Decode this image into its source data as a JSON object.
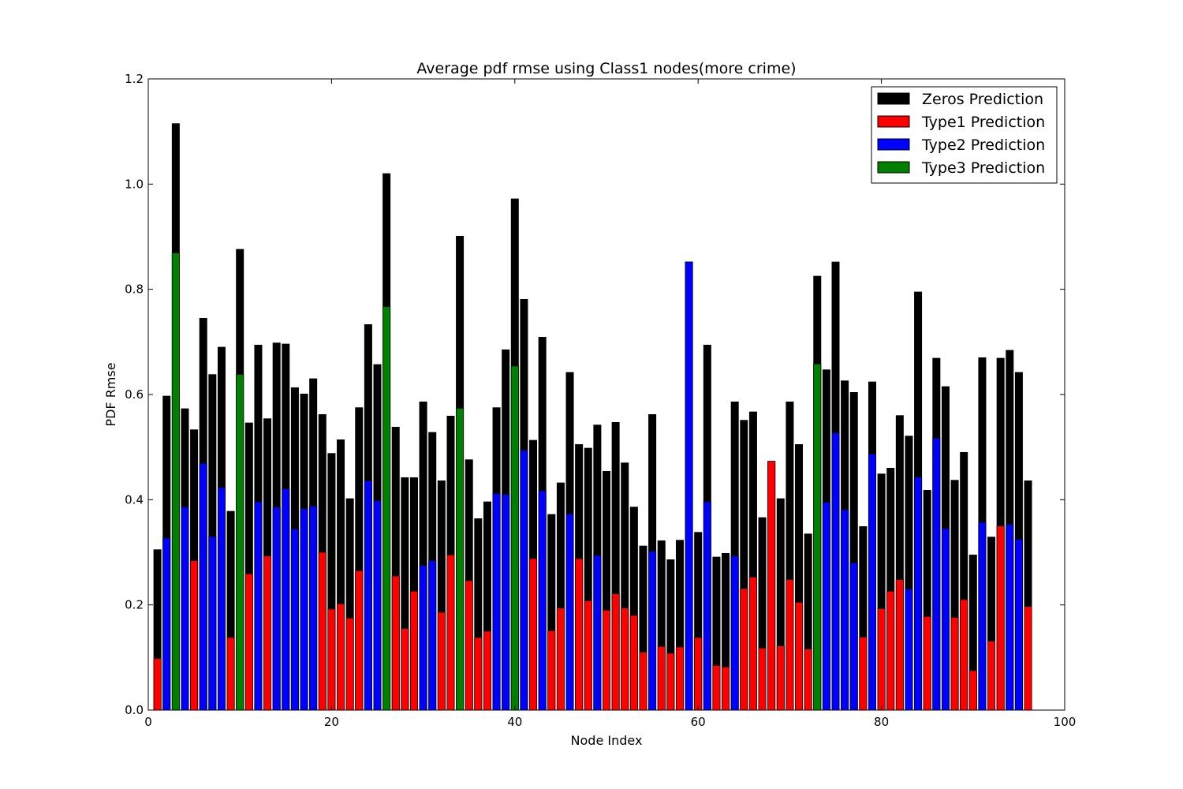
{
  "chart_data": {
    "type": "bar",
    "title": "Average pdf rmse using Class1 nodes(more crime)",
    "xlabel": "Node Index",
    "ylabel": "PDF Rmse",
    "xlim": [
      0,
      100
    ],
    "ylim": [
      0,
      1.2
    ],
    "xticks": [
      "0",
      "20",
      "40",
      "60",
      "80",
      "100"
    ],
    "xtick_values": [
      0,
      20,
      40,
      60,
      80,
      100
    ],
    "yticks": [
      "0.0",
      "0.2",
      "0.4",
      "0.6",
      "0.8",
      "1.0",
      "1.2"
    ],
    "ytick_values": [
      0,
      0.2,
      0.4,
      0.6,
      0.8,
      1.0,
      1.2
    ],
    "legend_position": "top-right",
    "series": [
      {
        "name": "Zeros Prediction",
        "color": "#000000"
      },
      {
        "name": "Type1 Prediction",
        "color": "#ff0000"
      },
      {
        "name": "Type2 Prediction",
        "color": "#0000ff"
      },
      {
        "name": "Type3 Prediction",
        "color": "#008000"
      }
    ],
    "x": [
      1,
      2,
      3,
      4,
      5,
      6,
      7,
      8,
      9,
      10,
      11,
      12,
      13,
      14,
      15,
      16,
      17,
      18,
      19,
      20,
      21,
      22,
      23,
      24,
      25,
      26,
      27,
      28,
      29,
      30,
      31,
      32,
      33,
      34,
      35,
      36,
      37,
      38,
      39,
      40,
      41,
      42,
      43,
      44,
      45,
      46,
      47,
      48,
      49,
      50,
      51,
      52,
      53,
      54,
      55,
      56,
      57,
      58,
      59,
      60,
      61,
      62,
      63,
      64,
      65,
      66,
      67,
      68,
      69,
      70,
      71,
      72,
      73,
      74,
      75,
      76,
      77,
      78,
      79,
      80,
      81,
      82,
      83,
      84,
      85,
      86,
      87,
      88,
      89,
      90,
      91,
      92,
      93,
      94,
      95,
      96
    ],
    "zeros": [
      0.305,
      0.597,
      1.115,
      0.573,
      0.533,
      0.745,
      0.638,
      0.69,
      0.378,
      0.876,
      0.546,
      0.694,
      0.554,
      0.698,
      0.696,
      0.613,
      0.601,
      0.63,
      0.562,
      0.488,
      0.514,
      0.402,
      0.575,
      0.733,
      0.657,
      1.02,
      0.538,
      0.442,
      0.442,
      0.586,
      0.528,
      0.436,
      0.559,
      0.901,
      0.476,
      0.364,
      0.396,
      0.575,
      0.685,
      0.972,
      0.781,
      0.513,
      0.709,
      0.372,
      0.432,
      0.642,
      0.505,
      0.498,
      0.542,
      0.454,
      0.547,
      0.47,
      0.386,
      0.312,
      0.562,
      0.322,
      0.286,
      0.323,
      0.852,
      0.338,
      0.694,
      0.291,
      0.298,
      0.586,
      0.551,
      0.567,
      0.366,
      0.473,
      0.402,
      0.586,
      0.505,
      0.335,
      0.825,
      0.647,
      0.852,
      0.626,
      0.604,
      0.349,
      0.624,
      0.449,
      0.46,
      0.56,
      0.521,
      0.795,
      0.418,
      0.669,
      0.615,
      0.437,
      0.49,
      0.295,
      0.67,
      0.329,
      0.669,
      0.684,
      0.642,
      0.436
    ],
    "pred_value": [
      0.098,
      0.327,
      0.869,
      0.386,
      0.284,
      0.469,
      0.33,
      0.423,
      0.138,
      0.638,
      0.259,
      0.396,
      0.293,
      0.386,
      0.421,
      0.344,
      0.383,
      0.388,
      0.3,
      0.192,
      0.202,
      0.175,
      0.265,
      0.436,
      0.398,
      0.767,
      0.255,
      0.155,
      0.226,
      0.275,
      0.284,
      0.186,
      0.295,
      0.574,
      0.246,
      0.138,
      0.15,
      0.412,
      0.41,
      0.654,
      0.494,
      0.288,
      0.417,
      0.151,
      0.194,
      0.373,
      0.288,
      0.208,
      0.294,
      0.19,
      0.221,
      0.194,
      0.18,
      0.11,
      0.302,
      0.121,
      0.108,
      0.12,
      0.852,
      0.138,
      0.396,
      0.085,
      0.082,
      0.293,
      0.231,
      0.253,
      0.118,
      0.473,
      0.122,
      0.248,
      0.205,
      0.116,
      0.658,
      0.395,
      0.527,
      0.381,
      0.28,
      0.139,
      0.487,
      0.193,
      0.226,
      0.248,
      0.23,
      0.443,
      0.178,
      0.517,
      0.345,
      0.176,
      0.21,
      0.075,
      0.357,
      0.131,
      0.35,
      0.353,
      0.325,
      0.197
    ],
    "pred_type": [
      1,
      2,
      3,
      2,
      1,
      2,
      2,
      2,
      1,
      3,
      1,
      2,
      1,
      2,
      2,
      2,
      2,
      2,
      1,
      1,
      1,
      1,
      1,
      2,
      2,
      3,
      1,
      1,
      1,
      2,
      2,
      1,
      1,
      3,
      1,
      1,
      1,
      2,
      2,
      3,
      2,
      1,
      2,
      1,
      1,
      2,
      1,
      1,
      2,
      1,
      1,
      1,
      1,
      1,
      2,
      1,
      1,
      1,
      2,
      1,
      2,
      1,
      1,
      2,
      1,
      1,
      1,
      1,
      1,
      1,
      1,
      1,
      3,
      2,
      2,
      2,
      2,
      1,
      2,
      1,
      1,
      1,
      2,
      2,
      1,
      2,
      2,
      1,
      1,
      1,
      2,
      1,
      1,
      2,
      2,
      1
    ]
  }
}
